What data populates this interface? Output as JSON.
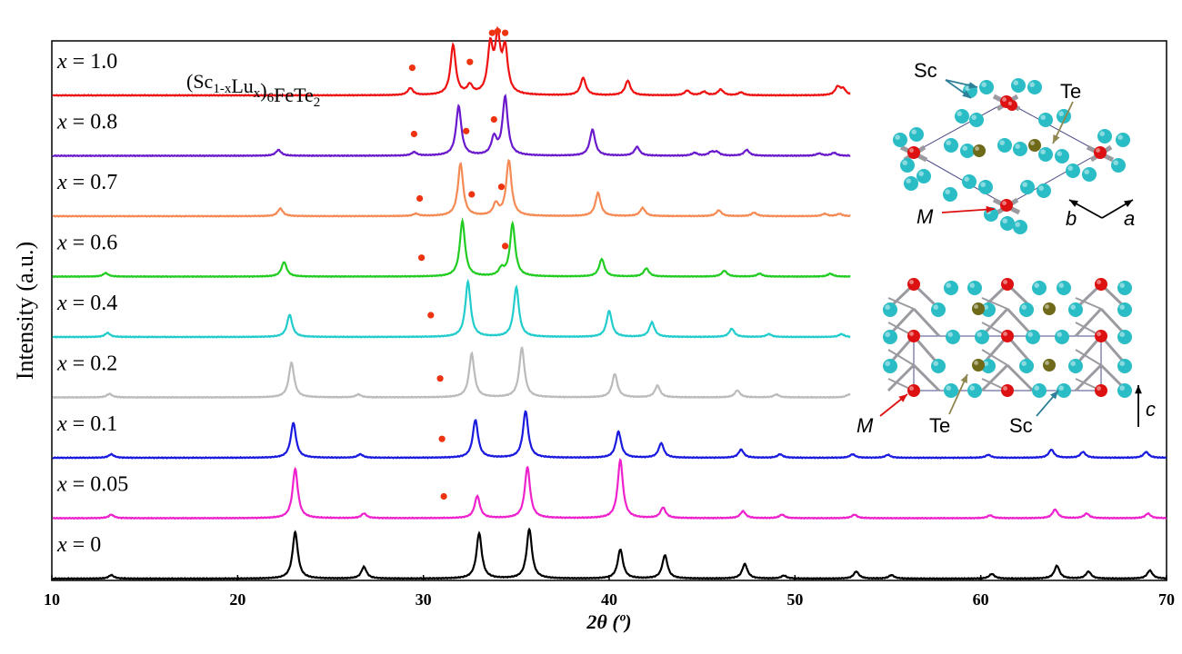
{
  "chart_data": {
    "type": "line",
    "xlabel": "2θ (º)",
    "ylabel": "Intensity (a.u.)",
    "xlim": [
      10,
      70
    ],
    "xticks": [
      "10",
      "20",
      "30",
      "40",
      "50",
      "60",
      "70"
    ],
    "formula": "(Sc1-xLux)6FeTe2",
    "series": [
      {
        "label": "x = 0",
        "color": "#000000",
        "xmax": 70,
        "peaks": [
          [
            13.2,
            0.06
          ],
          [
            23.1,
            0.8
          ],
          [
            26.8,
            0.2
          ],
          [
            33.0,
            0.78
          ],
          [
            35.7,
            0.85
          ],
          [
            40.6,
            0.5
          ],
          [
            43.0,
            0.4
          ],
          [
            47.3,
            0.25
          ],
          [
            49.4,
            0.05
          ],
          [
            53.3,
            0.12
          ],
          [
            55.2,
            0.06
          ],
          [
            60.6,
            0.08
          ],
          [
            64.1,
            0.22
          ],
          [
            65.8,
            0.12
          ],
          [
            69.1,
            0.14
          ]
        ],
        "dots": []
      },
      {
        "label": "x = 0.05",
        "color": "#ee22cc",
        "xmax": 70,
        "peaks": [
          [
            13.2,
            0.06
          ],
          [
            23.1,
            0.85
          ],
          [
            26.8,
            0.08
          ],
          [
            32.9,
            0.38
          ],
          [
            35.6,
            0.88
          ],
          [
            40.6,
            1.0
          ],
          [
            42.9,
            0.18
          ],
          [
            47.2,
            0.12
          ],
          [
            49.3,
            0.06
          ],
          [
            53.2,
            0.06
          ],
          [
            60.5,
            0.05
          ],
          [
            64.0,
            0.15
          ],
          [
            65.7,
            0.08
          ],
          [
            69.0,
            0.08
          ]
        ],
        "dots": [
          [
            31.1,
            0.25
          ]
        ]
      },
      {
        "label": "x = 0.1",
        "color": "#1a1adf",
        "xmax": 70,
        "peaks": [
          [
            13.2,
            0.06
          ],
          [
            23.0,
            0.6
          ],
          [
            26.6,
            0.06
          ],
          [
            32.8,
            0.65
          ],
          [
            35.5,
            0.8
          ],
          [
            40.5,
            0.45
          ],
          [
            42.8,
            0.25
          ],
          [
            47.1,
            0.14
          ],
          [
            49.2,
            0.06
          ],
          [
            53.1,
            0.06
          ],
          [
            55.0,
            0.05
          ],
          [
            60.4,
            0.05
          ],
          [
            63.8,
            0.14
          ],
          [
            65.5,
            0.1
          ],
          [
            68.9,
            0.1
          ]
        ],
        "dots": [
          [
            31.0,
            0.2
          ]
        ]
      },
      {
        "label": "x = 0.2",
        "color": "#bbbbbb",
        "xmax": 53,
        "peaks": [
          [
            13.1,
            0.06
          ],
          [
            22.9,
            0.6
          ],
          [
            26.5,
            0.05
          ],
          [
            32.6,
            0.75
          ],
          [
            35.3,
            0.85
          ],
          [
            40.3,
            0.4
          ],
          [
            42.6,
            0.2
          ],
          [
            46.9,
            0.12
          ],
          [
            49.0,
            0.05
          ],
          [
            52.9,
            0.05
          ]
        ],
        "dots": [
          [
            30.9,
            0.2
          ]
        ]
      },
      {
        "label": "x = 0.4",
        "color": "#22cccc",
        "xmax": 53,
        "peaks": [
          [
            13.0,
            0.07
          ],
          [
            22.8,
            0.38
          ],
          [
            32.4,
            0.95
          ],
          [
            35.0,
            0.85
          ],
          [
            40.0,
            0.45
          ],
          [
            42.3,
            0.25
          ],
          [
            46.6,
            0.14
          ],
          [
            48.6,
            0.05
          ],
          [
            52.5,
            0.05
          ]
        ],
        "dots": [
          [
            30.4,
            0.25
          ]
        ]
      },
      {
        "label": "x = 0.6",
        "color": "#22cc22",
        "xmax": 53,
        "peaks": [
          [
            12.9,
            0.06
          ],
          [
            22.5,
            0.25
          ],
          [
            32.1,
            0.95
          ],
          [
            34.2,
            0.12
          ],
          [
            34.8,
            0.9
          ],
          [
            39.6,
            0.3
          ],
          [
            42.0,
            0.14
          ],
          [
            46.2,
            0.1
          ],
          [
            48.1,
            0.05
          ],
          [
            51.9,
            0.05
          ]
        ],
        "dots": [
          [
            29.9,
            0.2
          ],
          [
            34.4,
            0.4
          ]
        ]
      },
      {
        "label": "x = 0.7",
        "color": "#f58a55",
        "xmax": 53,
        "peaks": [
          [
            22.3,
            0.13
          ],
          [
            29.6,
            0.04
          ],
          [
            32.0,
            0.9
          ],
          [
            33.9,
            0.2
          ],
          [
            34.6,
            0.95
          ],
          [
            39.4,
            0.4
          ],
          [
            41.8,
            0.14
          ],
          [
            45.9,
            0.1
          ],
          [
            47.8,
            0.06
          ],
          [
            51.6,
            0.04
          ],
          [
            52.4,
            0.04
          ]
        ],
        "dots": [
          [
            29.8,
            0.18
          ],
          [
            32.6,
            0.25
          ],
          [
            34.2,
            0.38
          ]
        ]
      },
      {
        "label": "x = 0.8",
        "color": "#6a1acc",
        "xmax": 53,
        "peaks": [
          [
            22.2,
            0.1
          ],
          [
            29.5,
            0.06
          ],
          [
            31.9,
            0.85
          ],
          [
            33.8,
            0.3
          ],
          [
            34.4,
            1.0
          ],
          [
            39.1,
            0.45
          ],
          [
            41.5,
            0.15
          ],
          [
            44.6,
            0.05
          ],
          [
            45.5,
            0.06
          ],
          [
            45.8,
            0.06
          ],
          [
            47.4,
            0.1
          ],
          [
            51.3,
            0.04
          ],
          [
            52.1,
            0.05
          ]
        ],
        "dots": [
          [
            29.5,
            0.25
          ],
          [
            32.3,
            0.3
          ],
          [
            33.8,
            0.5
          ]
        ]
      },
      {
        "label": "x = 1.0",
        "color": "#ee1111",
        "xmax": 53,
        "peaks": [
          [
            29.3,
            0.12
          ],
          [
            31.6,
            0.85
          ],
          [
            32.5,
            0.15
          ],
          [
            33.6,
            0.8
          ],
          [
            34.0,
            0.9
          ],
          [
            34.4,
            0.75
          ],
          [
            38.6,
            0.3
          ],
          [
            41.0,
            0.25
          ],
          [
            44.2,
            0.08
          ],
          [
            45.1,
            0.06
          ],
          [
            46.0,
            0.1
          ],
          [
            47.1,
            0.05
          ],
          [
            52.3,
            0.14
          ],
          [
            52.6,
            0.1
          ]
        ],
        "dots": [
          [
            29.4,
            0.35
          ],
          [
            32.5,
            0.45
          ],
          [
            33.7,
            0.95
          ],
          [
            34.0,
            0.98
          ],
          [
            34.4,
            0.95
          ]
        ]
      }
    ]
  },
  "dot_color": "#ee3311",
  "insets": {
    "top": {
      "sc": "Sc",
      "te": "Te",
      "m": "M",
      "axis_b": "b",
      "axis_a": "a"
    },
    "bottom": {
      "sc": "Sc",
      "te": "Te",
      "m": "M",
      "axis_c": "c"
    },
    "colors": {
      "sc": "#2bbdc6",
      "sc_label": "#2e7f98",
      "te": "#6e6a1a",
      "te_label": "#8f8650",
      "m": "#dd1111",
      "bond": "#9a9aa0",
      "cell": "#4a4a88"
    }
  }
}
